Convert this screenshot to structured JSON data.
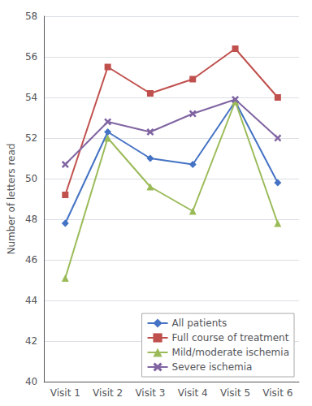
{
  "chart_data": {
    "type": "line",
    "categories": [
      "Visit 1",
      "Visit 2",
      "Visit 3",
      "Visit 4",
      "Visit 5",
      "Visit 6"
    ],
    "series": [
      {
        "name": "All patients",
        "color": "#4472C4",
        "marker": "diamond",
        "values": [
          47.8,
          52.3,
          51.0,
          50.7,
          53.8,
          49.8
        ]
      },
      {
        "name": "Full course of treatment",
        "color": "#C0504D",
        "marker": "square",
        "values": [
          49.2,
          55.5,
          54.2,
          54.9,
          56.4,
          54.0
        ]
      },
      {
        "name": "Mild/moderate ischemia",
        "color": "#9BBB59",
        "marker": "triangle",
        "values": [
          45.1,
          52.0,
          49.6,
          48.4,
          53.8,
          47.8
        ]
      },
      {
        "name": "Severe ischemia",
        "color": "#8064A2",
        "marker": "x",
        "values": [
          50.7,
          52.8,
          52.3,
          53.2,
          53.9,
          52.0
        ]
      }
    ],
    "ylabel": "Number of letters read",
    "ylim": [
      40,
      58
    ],
    "yticks": [
      40,
      42,
      44,
      46,
      48,
      50,
      52,
      54,
      56,
      58
    ],
    "grid": true,
    "legend": "lower right"
  }
}
